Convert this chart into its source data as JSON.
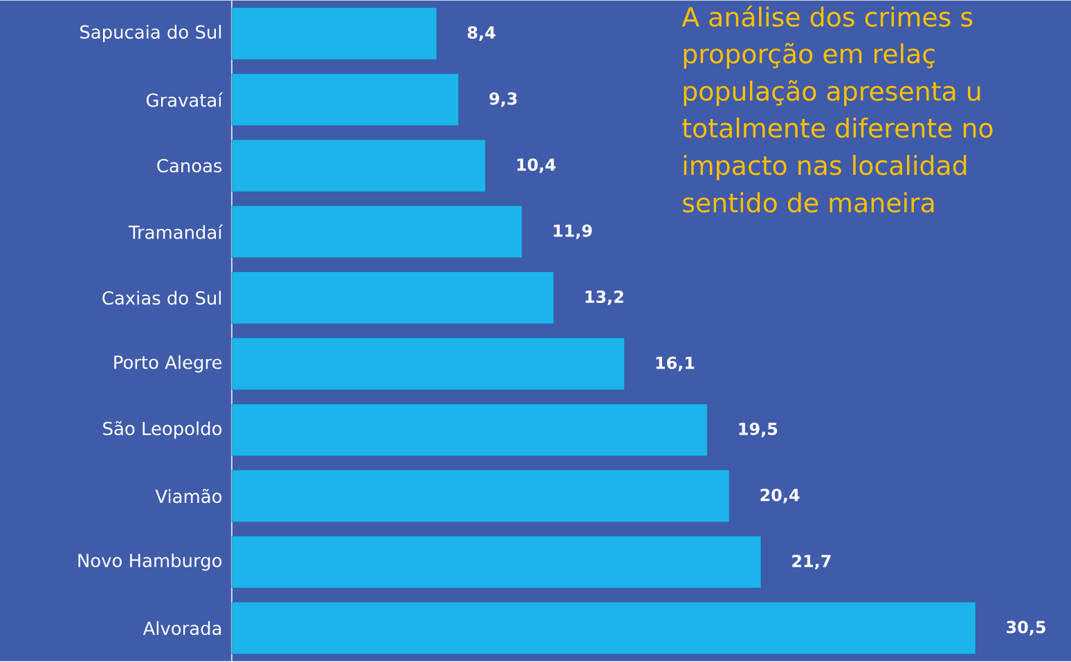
{
  "chart_data": {
    "type": "bar",
    "orientation": "horizontal",
    "color": "#1cb4ea",
    "categories": [
      "Sapucaia do Sul",
      "Gravataí",
      "Canoas",
      "Tramandaí",
      "Caxias do Sul",
      "Porto Alegre",
      "São Leopoldo",
      "Viamão",
      "Novo Hamburgo",
      "Alvorada"
    ],
    "values": [
      8.4,
      9.3,
      10.4,
      11.9,
      13.2,
      16.1,
      19.5,
      20.4,
      21.7,
      30.5
    ],
    "value_labels": [
      "8,4",
      "9,3",
      "10,4",
      "11,9",
      "13,2",
      "16,1",
      "19,5",
      "20,4",
      "21,7",
      "30,5"
    ],
    "annotations": [
      "A análise dos crimes s",
      "proporção em relaç",
      "população apresenta u",
      "totalmente diferente no",
      "impacto nas localidad",
      "sentido de maneira"
    ]
  }
}
